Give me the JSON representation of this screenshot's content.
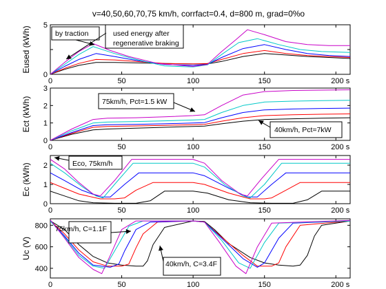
{
  "figure": {
    "title": "v=40,50,60,70,75 km/h, corrfact=0.4, d=800 m, grad=0%o",
    "series_colors": [
      "#000000",
      "#ff0000",
      "#0000ff",
      "#00c8c8",
      "#c800c8"
    ],
    "background": "#ffffff"
  },
  "chart_data": [
    {
      "type": "line",
      "ylabel": "Eused (kWh)",
      "xlim": [
        0,
        210
      ],
      "ylim": [
        0,
        5
      ],
      "xticks": [
        0,
        50,
        100,
        150,
        200
      ],
      "xtick_labels": [
        "0",
        "50",
        "100",
        "150",
        "200 s"
      ],
      "yticks": [
        0,
        2.5,
        5
      ],
      "ytick_labels": [
        "0",
        "",
        "5"
      ],
      "grid": false,
      "series": [
        {
          "x": [
            0,
            10,
            20,
            32,
            45,
            60,
            80,
            100,
            110,
            120,
            135,
            150,
            165,
            180,
            195,
            210
          ],
          "y": [
            0,
            0.5,
            0.9,
            1.2,
            1.2,
            1.15,
            1.1,
            1.05,
            1.05,
            1.3,
            1.8,
            2.1,
            1.95,
            1.8,
            1.7,
            1.6
          ]
        },
        {
          "x": [
            0,
            10,
            20,
            32,
            45,
            60,
            80,
            100,
            110,
            120,
            135,
            150,
            165,
            180,
            195,
            210
          ],
          "y": [
            0,
            0.6,
            1.1,
            1.5,
            1.45,
            1.3,
            1.1,
            1.05,
            1.1,
            1.5,
            2.1,
            2.4,
            2.1,
            1.9,
            1.8,
            1.7
          ]
        },
        {
          "x": [
            0,
            10,
            20,
            32,
            45,
            60,
            80,
            100,
            110,
            120,
            135,
            150,
            165,
            180,
            195,
            210
          ],
          "y": [
            0,
            0.8,
            1.5,
            2.1,
            1.8,
            1.4,
            1.0,
            0.9,
            1.0,
            1.7,
            2.6,
            3.0,
            2.5,
            2.1,
            1.9,
            1.8
          ]
        },
        {
          "x": [
            0,
            10,
            20,
            30,
            45,
            60,
            80,
            100,
            110,
            120,
            132,
            145,
            160,
            175,
            190,
            210
          ],
          "y": [
            0,
            1.0,
            2.0,
            2.8,
            2.1,
            1.5,
            0.85,
            0.75,
            0.95,
            2.0,
            3.2,
            3.6,
            3.0,
            2.5,
            2.3,
            2.2
          ]
        },
        {
          "x": [
            0,
            10,
            20,
            30,
            42,
            55,
            75,
            100,
            110,
            120,
            130,
            138,
            150,
            165,
            180,
            195,
            210
          ],
          "y": [
            0,
            1.2,
            2.3,
            3.1,
            2.4,
            1.8,
            1.1,
            0.8,
            1.0,
            2.3,
            3.5,
            4.5,
            4.0,
            3.3,
            3.0,
            2.9,
            2.9
          ]
        }
      ],
      "annotations": [
        "by traction",
        "used energy after regenerative braking"
      ]
    },
    {
      "type": "line",
      "ylabel": "Ect (kWh)",
      "xlim": [
        0,
        210
      ],
      "ylim": [
        0,
        3
      ],
      "xticks": [
        0,
        50,
        100,
        150,
        200
      ],
      "xtick_labels": [
        "0",
        "50",
        "100",
        "150",
        "200 s"
      ],
      "yticks": [
        0,
        1,
        2,
        3
      ],
      "ytick_labels": [
        "0",
        "1",
        "2",
        "3"
      ],
      "grid": false,
      "series": [
        {
          "x": [
            0,
            15,
            30,
            40,
            60,
            80,
            100,
            108,
            120,
            135,
            150,
            170,
            190,
            210
          ],
          "y": [
            0,
            0.35,
            0.6,
            0.65,
            0.7,
            0.75,
            0.8,
            0.82,
            0.95,
            1.1,
            1.2,
            1.24,
            1.27,
            1.3
          ]
        },
        {
          "x": [
            0,
            15,
            30,
            40,
            60,
            80,
            100,
            108,
            120,
            135,
            150,
            170,
            190,
            210
          ],
          "y": [
            0,
            0.4,
            0.75,
            0.8,
            0.83,
            0.86,
            0.9,
            0.92,
            1.1,
            1.3,
            1.42,
            1.47,
            1.5,
            1.52
          ]
        },
        {
          "x": [
            0,
            15,
            30,
            40,
            60,
            80,
            100,
            108,
            120,
            135,
            150,
            170,
            190,
            210
          ],
          "y": [
            0,
            0.45,
            0.85,
            0.9,
            0.92,
            0.95,
            1.0,
            1.02,
            1.3,
            1.6,
            1.75,
            1.8,
            1.83,
            1.85
          ]
        },
        {
          "x": [
            0,
            15,
            30,
            40,
            60,
            80,
            100,
            108,
            120,
            135,
            150,
            170,
            190,
            210
          ],
          "y": [
            0,
            0.55,
            1.0,
            1.05,
            1.08,
            1.12,
            1.17,
            1.2,
            1.6,
            2.0,
            2.2,
            2.25,
            2.28,
            2.3
          ]
        },
        {
          "x": [
            0,
            15,
            30,
            40,
            60,
            80,
            100,
            108,
            120,
            135,
            150,
            170,
            190,
            210
          ],
          "y": [
            0,
            0.65,
            1.2,
            1.27,
            1.3,
            1.35,
            1.42,
            1.47,
            2.0,
            2.6,
            2.8,
            2.86,
            2.88,
            2.9
          ]
        }
      ],
      "annotations": [
        "75km/h, Pct=1.5 kW",
        "40km/h, Pct=7kW"
      ]
    },
    {
      "type": "line",
      "ylabel": "Ec (kWh)",
      "xlim": [
        0,
        210
      ],
      "ylim": [
        0,
        2.5
      ],
      "xticks": [
        0,
        50,
        100,
        150,
        200
      ],
      "xtick_labels": [
        "0",
        "50",
        "100",
        "150",
        "200 s"
      ],
      "yticks": [
        0,
        1,
        2
      ],
      "ytick_labels": [
        "0",
        "1",
        "2"
      ],
      "grid": false,
      "series": [
        {
          "x": [
            0,
            10,
            20,
            30,
            45,
            60,
            70,
            80,
            100,
            110,
            125,
            140,
            155,
            170,
            180,
            190,
            210
          ],
          "y": [
            0.65,
            0.4,
            0.15,
            0.05,
            0.02,
            0.02,
            0.15,
            0.65,
            0.65,
            0.55,
            0.2,
            0.05,
            0.02,
            0.02,
            0.2,
            0.65,
            0.65
          ]
        },
        {
          "x": [
            0,
            10,
            20,
            35,
            45,
            52,
            60,
            72,
            100,
            108,
            125,
            140,
            150,
            155,
            165,
            175,
            210
          ],
          "y": [
            1.1,
            0.8,
            0.5,
            0.25,
            0.25,
            0.3,
            0.7,
            1.1,
            1.1,
            1.0,
            0.55,
            0.25,
            0.25,
            0.3,
            0.7,
            1.1,
            1.1
          ]
        },
        {
          "x": [
            0,
            10,
            22,
            35,
            42,
            52,
            62,
            100,
            108,
            125,
            138,
            145,
            155,
            165,
            210
          ],
          "y": [
            1.6,
            1.2,
            0.7,
            0.35,
            0.35,
            1.0,
            1.6,
            1.6,
            1.45,
            0.8,
            0.35,
            0.35,
            1.0,
            1.6,
            1.6
          ]
        },
        {
          "x": [
            0,
            10,
            22,
            32,
            37,
            45,
            58,
            100,
            108,
            122,
            135,
            140,
            150,
            162,
            210
          ],
          "y": [
            2.1,
            1.6,
            0.9,
            0.4,
            0.3,
            1.0,
            2.1,
            2.1,
            1.9,
            1.0,
            0.4,
            0.3,
            1.0,
            2.1,
            2.1
          ]
        },
        {
          "x": [
            0,
            10,
            20,
            30,
            35,
            45,
            57,
            100,
            108,
            120,
            133,
            138,
            148,
            160,
            210
          ],
          "y": [
            2.3,
            1.8,
            1.1,
            0.5,
            0.4,
            1.2,
            2.3,
            2.3,
            2.1,
            1.2,
            0.5,
            0.4,
            1.3,
            2.3,
            2.3
          ]
        }
      ],
      "annotations": [
        "Eco, 75km/h"
      ]
    },
    {
      "type": "line",
      "ylabel": "Uc (V)",
      "xlim": [
        0,
        210
      ],
      "ylim": [
        310,
        860
      ],
      "xticks": [
        0,
        50,
        100,
        150,
        200
      ],
      "xtick_labels": [
        "0",
        "50",
        "100",
        "150",
        "200 s"
      ],
      "yticks": [
        400,
        600,
        800
      ],
      "ytick_labels": [
        "400",
        "600",
        "800"
      ],
      "grid": false,
      "series": [
        {
          "x": [
            0,
            10,
            20,
            30,
            40,
            50,
            60,
            65,
            68,
            72,
            80,
            100,
            108,
            115,
            125,
            140,
            150,
            160,
            170,
            175,
            180,
            185,
            190,
            210
          ],
          "y": [
            840,
            760,
            620,
            510,
            450,
            430,
            420,
            420,
            470,
            620,
            780,
            840,
            835,
            760,
            630,
            500,
            450,
            430,
            420,
            430,
            520,
            700,
            800,
            840
          ]
        },
        {
          "x": [
            0,
            10,
            20,
            30,
            40,
            50,
            55,
            60,
            65,
            75,
            100,
            108,
            120,
            135,
            145,
            155,
            160,
            165,
            175,
            210
          ],
          "y": [
            840,
            720,
            570,
            460,
            420,
            420,
            440,
            590,
            720,
            830,
            840,
            830,
            690,
            520,
            420,
            420,
            450,
            600,
            800,
            840
          ]
        },
        {
          "x": [
            0,
            10,
            20,
            30,
            42,
            48,
            52,
            60,
            70,
            100,
            108,
            120,
            135,
            145,
            150,
            160,
            170,
            210
          ],
          "y": [
            840,
            700,
            540,
            430,
            410,
            440,
            560,
            760,
            830,
            840,
            830,
            680,
            490,
            410,
            450,
            680,
            820,
            840
          ]
        },
        {
          "x": [
            0,
            10,
            20,
            30,
            38,
            45,
            55,
            65,
            100,
            108,
            120,
            132,
            140,
            150,
            160,
            210
          ],
          "y": [
            840,
            690,
            520,
            420,
            400,
            560,
            790,
            840,
            840,
            830,
            660,
            450,
            400,
            640,
            820,
            840
          ]
        },
        {
          "x": [
            0,
            10,
            20,
            30,
            36,
            42,
            50,
            60,
            100,
            108,
            118,
            130,
            137,
            145,
            155,
            210
          ],
          "y": [
            850,
            680,
            500,
            390,
            350,
            520,
            760,
            840,
            840,
            830,
            650,
            420,
            350,
            600,
            820,
            845
          ]
        }
      ],
      "annotations": [
        "75km/h, C=1.1F",
        "40km/h, C=3.4F"
      ]
    }
  ]
}
